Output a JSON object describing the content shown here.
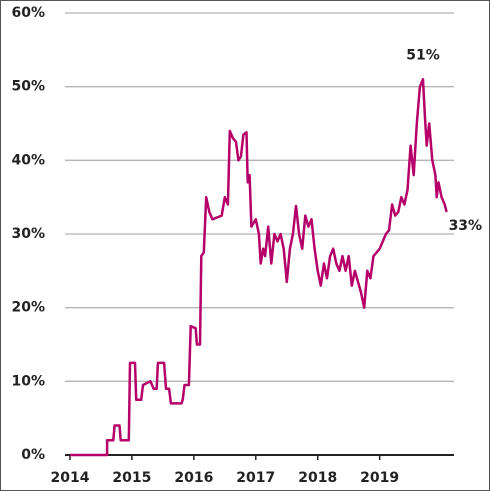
{
  "chart_data": {
    "type": "line",
    "series": [
      {
        "color": "#b5006a",
        "x": [
          2014.0,
          2014.6,
          2014.6,
          2014.7,
          2014.72,
          2014.8,
          2014.82,
          2014.95,
          2014.97,
          2015.05,
          2015.07,
          2015.15,
          2015.18,
          2015.3,
          2015.35,
          2015.4,
          2015.42,
          2015.52,
          2015.55,
          2015.6,
          2015.63,
          2015.8,
          2015.82,
          2015.85,
          2015.92,
          2015.95,
          2016.03,
          2016.05,
          2016.1,
          2016.12,
          2016.16,
          2016.2,
          2016.25,
          2016.3,
          2016.45,
          2016.5,
          2016.55,
          2016.58,
          2016.63,
          2016.68,
          2016.72,
          2016.76,
          2016.8,
          2016.85,
          2016.87,
          2016.9,
          2016.93,
          2017.0,
          2017.05,
          2017.08,
          2017.12,
          2017.15,
          2017.2,
          2017.25,
          2017.3,
          2017.35,
          2017.4,
          2017.45,
          2017.5,
          2017.55,
          2017.6,
          2017.65,
          2017.7,
          2017.75,
          2017.8,
          2017.85,
          2017.9,
          2017.95,
          2018.0,
          2018.05,
          2018.1,
          2018.15,
          2018.2,
          2018.25,
          2018.3,
          2018.35,
          2018.4,
          2018.45,
          2018.5,
          2018.55,
          2018.6,
          2018.7,
          2018.75,
          2018.8,
          2018.85,
          2018.9,
          2019.0,
          2019.05,
          2019.1,
          2019.15,
          2019.2,
          2019.25,
          2019.3,
          2019.35,
          2019.4,
          2019.45,
          2019.5,
          2019.55,
          2019.6,
          2019.65,
          2019.7,
          2019.73,
          2019.76,
          2019.8,
          2019.85,
          2019.9,
          2019.92,
          2019.95,
          2020.0,
          2020.05,
          2020.08
        ],
        "values": [
          0,
          0,
          2,
          2,
          4,
          4,
          2,
          2,
          12.5,
          12.5,
          7.5,
          7.5,
          9.5,
          10,
          9,
          9,
          12.5,
          12.5,
          9,
          9,
          7,
          7,
          7.5,
          9.5,
          9.5,
          17.5,
          17.2,
          15,
          15,
          27,
          27.5,
          35,
          33,
          32,
          32.5,
          35,
          34,
          44,
          43,
          42.5,
          40,
          40.5,
          43.5,
          43.8,
          37,
          38,
          31,
          32,
          30,
          26,
          28,
          27,
          31,
          26,
          30,
          29,
          30,
          28,
          23.5,
          28,
          30,
          33.8,
          30,
          28,
          32.5,
          31,
          32,
          28,
          25,
          23,
          26,
          24,
          27,
          28,
          26,
          25,
          27,
          25,
          27,
          23,
          25,
          22,
          20,
          25,
          24,
          27,
          28,
          29,
          30,
          30.5,
          34,
          32.5,
          33,
          35,
          34,
          36,
          42,
          38,
          45,
          50,
          51,
          46,
          42,
          45,
          40,
          38,
          35,
          37,
          35,
          34,
          33
        ]
      }
    ],
    "annotations": [
      {
        "text": "51%",
        "x": 2019.7,
        "y": 51
      },
      {
        "text": "33%",
        "x": 2020.08,
        "y": 33
      }
    ],
    "xlim": [
      2013.92,
      2020.2
    ],
    "xticks": [
      2014,
      2015,
      2016,
      2017,
      2018,
      2019
    ],
    "ylim": [
      0,
      60
    ],
    "yticks": [
      {
        "value": 0,
        "label": "0%"
      },
      {
        "value": 10,
        "label": "10%"
      },
      {
        "value": 20,
        "label": "20%"
      },
      {
        "value": 30,
        "label": "30%"
      },
      {
        "value": 40,
        "label": "40%"
      },
      {
        "value": 50,
        "label": "50%"
      },
      {
        "value": 60,
        "label": "60%"
      }
    ],
    "grid": true
  }
}
